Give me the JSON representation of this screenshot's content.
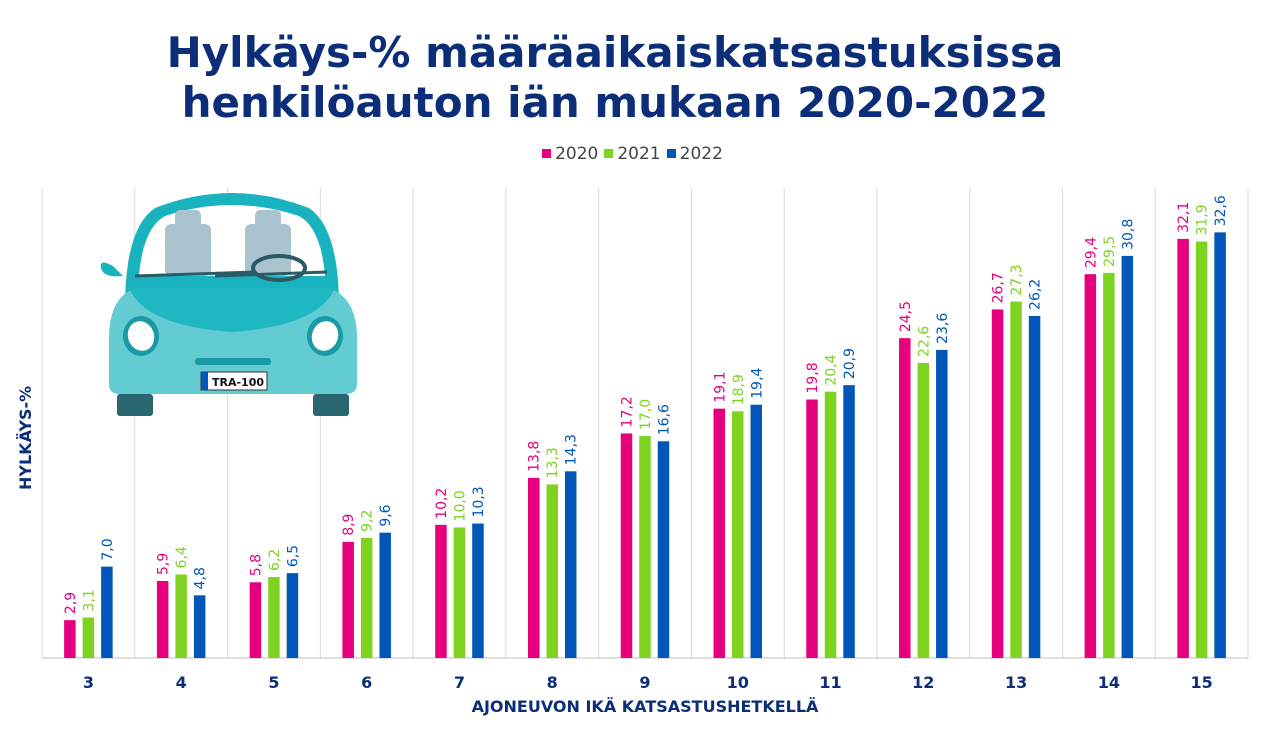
{
  "chart_data": {
    "type": "bar",
    "title_line1": "Hylkäys-% määräaikaiskatsastuksissa",
    "title_line2": "henkilöauton iän mukaan 2020-2022",
    "xlabel": "AJONEUVON IKÄ KATSASTUSHETKELLÄ",
    "ylabel": "HYLKÄYS-%",
    "categories": [
      "3",
      "4",
      "5",
      "6",
      "7",
      "8",
      "9",
      "10",
      "11",
      "12",
      "13",
      "14",
      "15"
    ],
    "series": [
      {
        "name": "2020",
        "color": "#e6007e",
        "values": [
          2.9,
          5.9,
          5.8,
          8.9,
          10.2,
          13.8,
          17.2,
          19.1,
          19.8,
          24.5,
          26.7,
          29.4,
          32.1
        ]
      },
      {
        "name": "2021",
        "color": "#7ed321",
        "values": [
          3.1,
          6.4,
          6.2,
          9.2,
          10.0,
          13.3,
          17.0,
          18.9,
          20.4,
          22.6,
          27.3,
          29.5,
          31.9
        ]
      },
      {
        "name": "2022",
        "color": "#0057b8",
        "values": [
          7.0,
          4.8,
          6.5,
          9.6,
          10.3,
          14.3,
          16.6,
          19.4,
          20.9,
          23.6,
          26.2,
          30.8,
          32.6
        ]
      }
    ],
    "ylim": [
      0,
      36
    ],
    "legend_position": "top-center",
    "grid": "vertical",
    "decimal_separator": ","
  },
  "car_plate": "TRA-100"
}
